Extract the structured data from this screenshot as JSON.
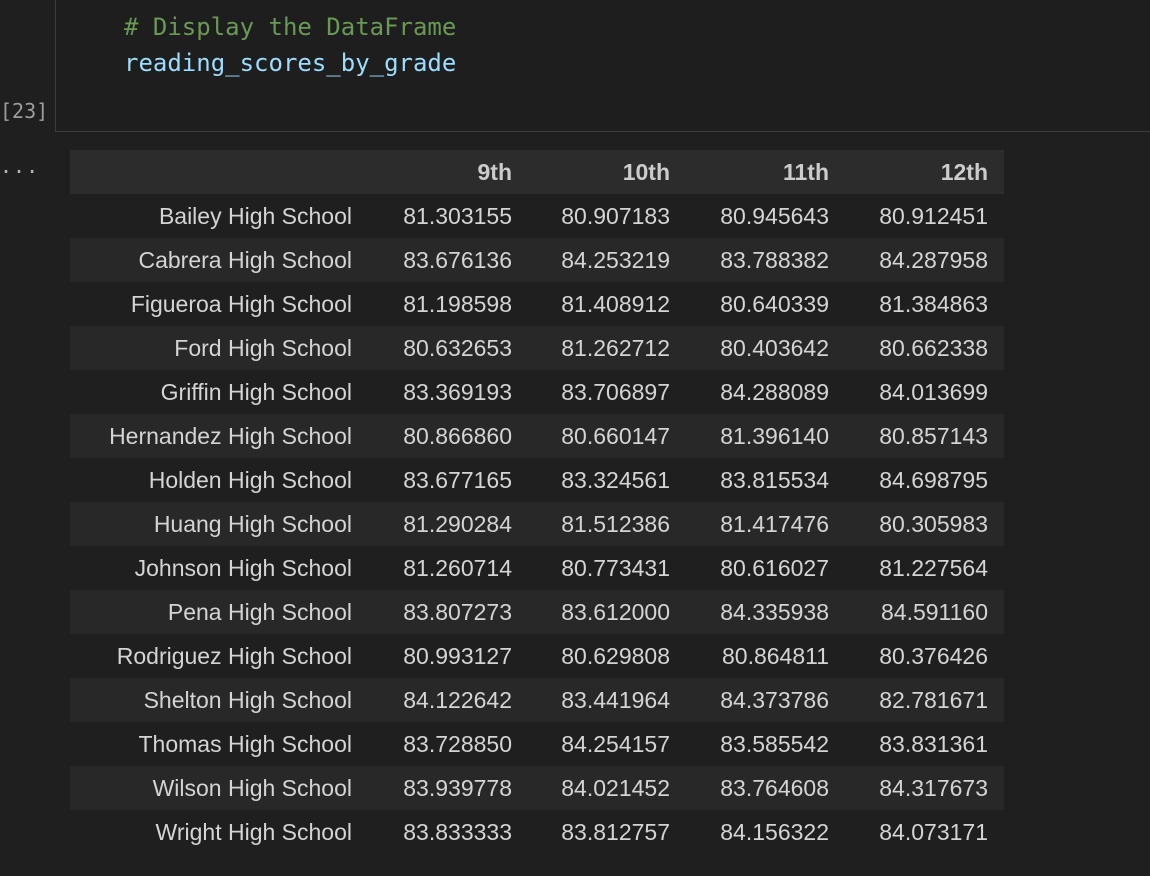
{
  "code": {
    "comment": "# Display the DataFrame",
    "variable": "reading_scores_by_grade"
  },
  "cell": {
    "execution_count": "[23]",
    "output_marker": "..."
  },
  "table": {
    "columns": [
      "9th",
      "10th",
      "11th",
      "12th"
    ],
    "rows": [
      {
        "index": "Bailey High School",
        "values": [
          "81.303155",
          "80.907183",
          "80.945643",
          "80.912451"
        ]
      },
      {
        "index": "Cabrera High School",
        "values": [
          "83.676136",
          "84.253219",
          "83.788382",
          "84.287958"
        ]
      },
      {
        "index": "Figueroa High School",
        "values": [
          "81.198598",
          "81.408912",
          "80.640339",
          "81.384863"
        ]
      },
      {
        "index": "Ford High School",
        "values": [
          "80.632653",
          "81.262712",
          "80.403642",
          "80.662338"
        ]
      },
      {
        "index": "Griffin High School",
        "values": [
          "83.369193",
          "83.706897",
          "84.288089",
          "84.013699"
        ]
      },
      {
        "index": "Hernandez High School",
        "values": [
          "80.866860",
          "80.660147",
          "81.396140",
          "80.857143"
        ]
      },
      {
        "index": "Holden High School",
        "values": [
          "83.677165",
          "83.324561",
          "83.815534",
          "84.698795"
        ]
      },
      {
        "index": "Huang High School",
        "values": [
          "81.290284",
          "81.512386",
          "81.417476",
          "80.305983"
        ]
      },
      {
        "index": "Johnson High School",
        "values": [
          "81.260714",
          "80.773431",
          "80.616027",
          "81.227564"
        ]
      },
      {
        "index": "Pena High School",
        "values": [
          "83.807273",
          "83.612000",
          "84.335938",
          "84.591160"
        ]
      },
      {
        "index": "Rodriguez High School",
        "values": [
          "80.993127",
          "80.629808",
          "80.864811",
          "80.376426"
        ]
      },
      {
        "index": "Shelton High School",
        "values": [
          "84.122642",
          "83.441964",
          "84.373786",
          "82.781671"
        ]
      },
      {
        "index": "Thomas High School",
        "values": [
          "83.728850",
          "84.254157",
          "83.585542",
          "83.831361"
        ]
      },
      {
        "index": "Wilson High School",
        "values": [
          "83.939778",
          "84.021452",
          "83.764608",
          "84.317673"
        ]
      },
      {
        "index": "Wright High School",
        "values": [
          "83.833333",
          "83.812757",
          "84.156322",
          "84.073171"
        ]
      }
    ]
  }
}
